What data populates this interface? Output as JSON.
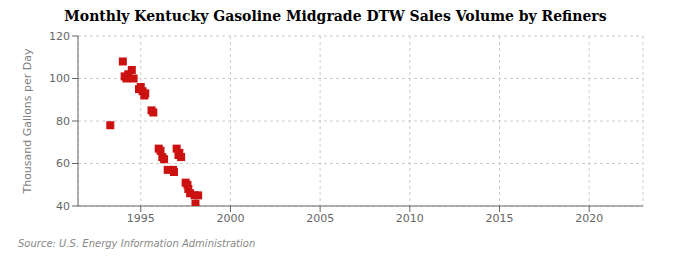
{
  "chart_data": {
    "type": "scatter",
    "title": "Monthly Kentucky Gasoline Midgrade DTW Sales Volume by Refiners",
    "ylabel": "Thousand Gallons per Day",
    "annotations": [
      "Source: U.S. Energy Information Administration"
    ],
    "color": "#cc1111",
    "marker": "square",
    "grid": true,
    "xlim": [
      1991.5,
      2023
    ],
    "ylim": [
      40,
      120
    ],
    "xticks": [
      1995,
      2000,
      2005,
      2010,
      2015,
      2020
    ],
    "yticks": [
      40,
      60,
      80,
      100,
      120
    ],
    "x": [
      1993.3,
      1994.0,
      1994.1,
      1994.2,
      1994.3,
      1994.5,
      1994.6,
      1994.9,
      1995.0,
      1995.1,
      1995.2,
      1995.25,
      1995.6,
      1995.7,
      1996.0,
      1996.1,
      1996.2,
      1996.3,
      1996.5,
      1996.8,
      1996.85,
      1997.0,
      1997.1,
      1997.15,
      1997.25,
      1997.5,
      1997.6,
      1997.65,
      1997.75,
      1998.0,
      1998.05,
      1998.2
    ],
    "values": [
      78,
      108,
      101,
      100,
      102,
      104,
      100,
      95,
      96,
      94,
      92,
      93,
      85,
      84,
      67,
      66,
      63,
      62,
      57,
      57,
      56,
      67,
      64,
      65,
      63,
      51,
      50,
      48,
      46,
      45,
      41,
      45
    ]
  }
}
